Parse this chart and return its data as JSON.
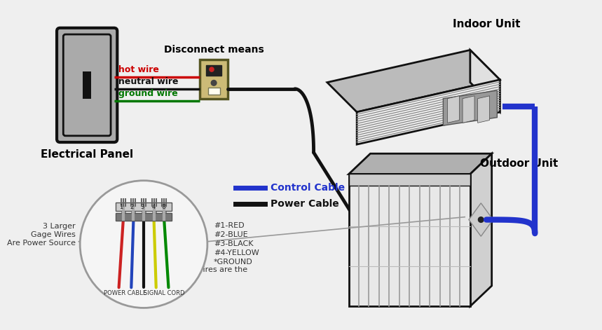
{
  "bg_color": "#efefef",
  "labels": {
    "electrical_panel": "Electrical Panel",
    "disconnect_means": "Disconnect means",
    "indoor_unit": "Indoor Unit",
    "outdoor_unit": "Outdoor Unit",
    "hot_wire": "hot wire",
    "neutral_wire": "neutral wire",
    "ground_wire": "ground wire",
    "control_cable": "Control Cable",
    "power_cable": "Power Cable",
    "wire_legend1": "#1-RED",
    "wire_legend2": "#2-BLUE",
    "wire_legend3": "#3-BLACK",
    "wire_legend4": "#4-YELLOW",
    "wire_legend5": "*GROUND",
    "larger_wires": "3 Larger\nGage Wires\nAre Power Source",
    "smaller_wires": "2 Smaller Wires are the\ncontrol",
    "power_cable_label": "POWER CABLE",
    "signal_cord_label": "SIGNAL CORD"
  },
  "colors": {
    "hot_wire": "#cc0000",
    "neutral_wire": "#111111",
    "ground_wire": "#007700",
    "control_cable": "#2233cc",
    "power_cable": "#111111",
    "panel_fill": "#aaaaaa",
    "disconnect_fill": "#ccbb77"
  }
}
